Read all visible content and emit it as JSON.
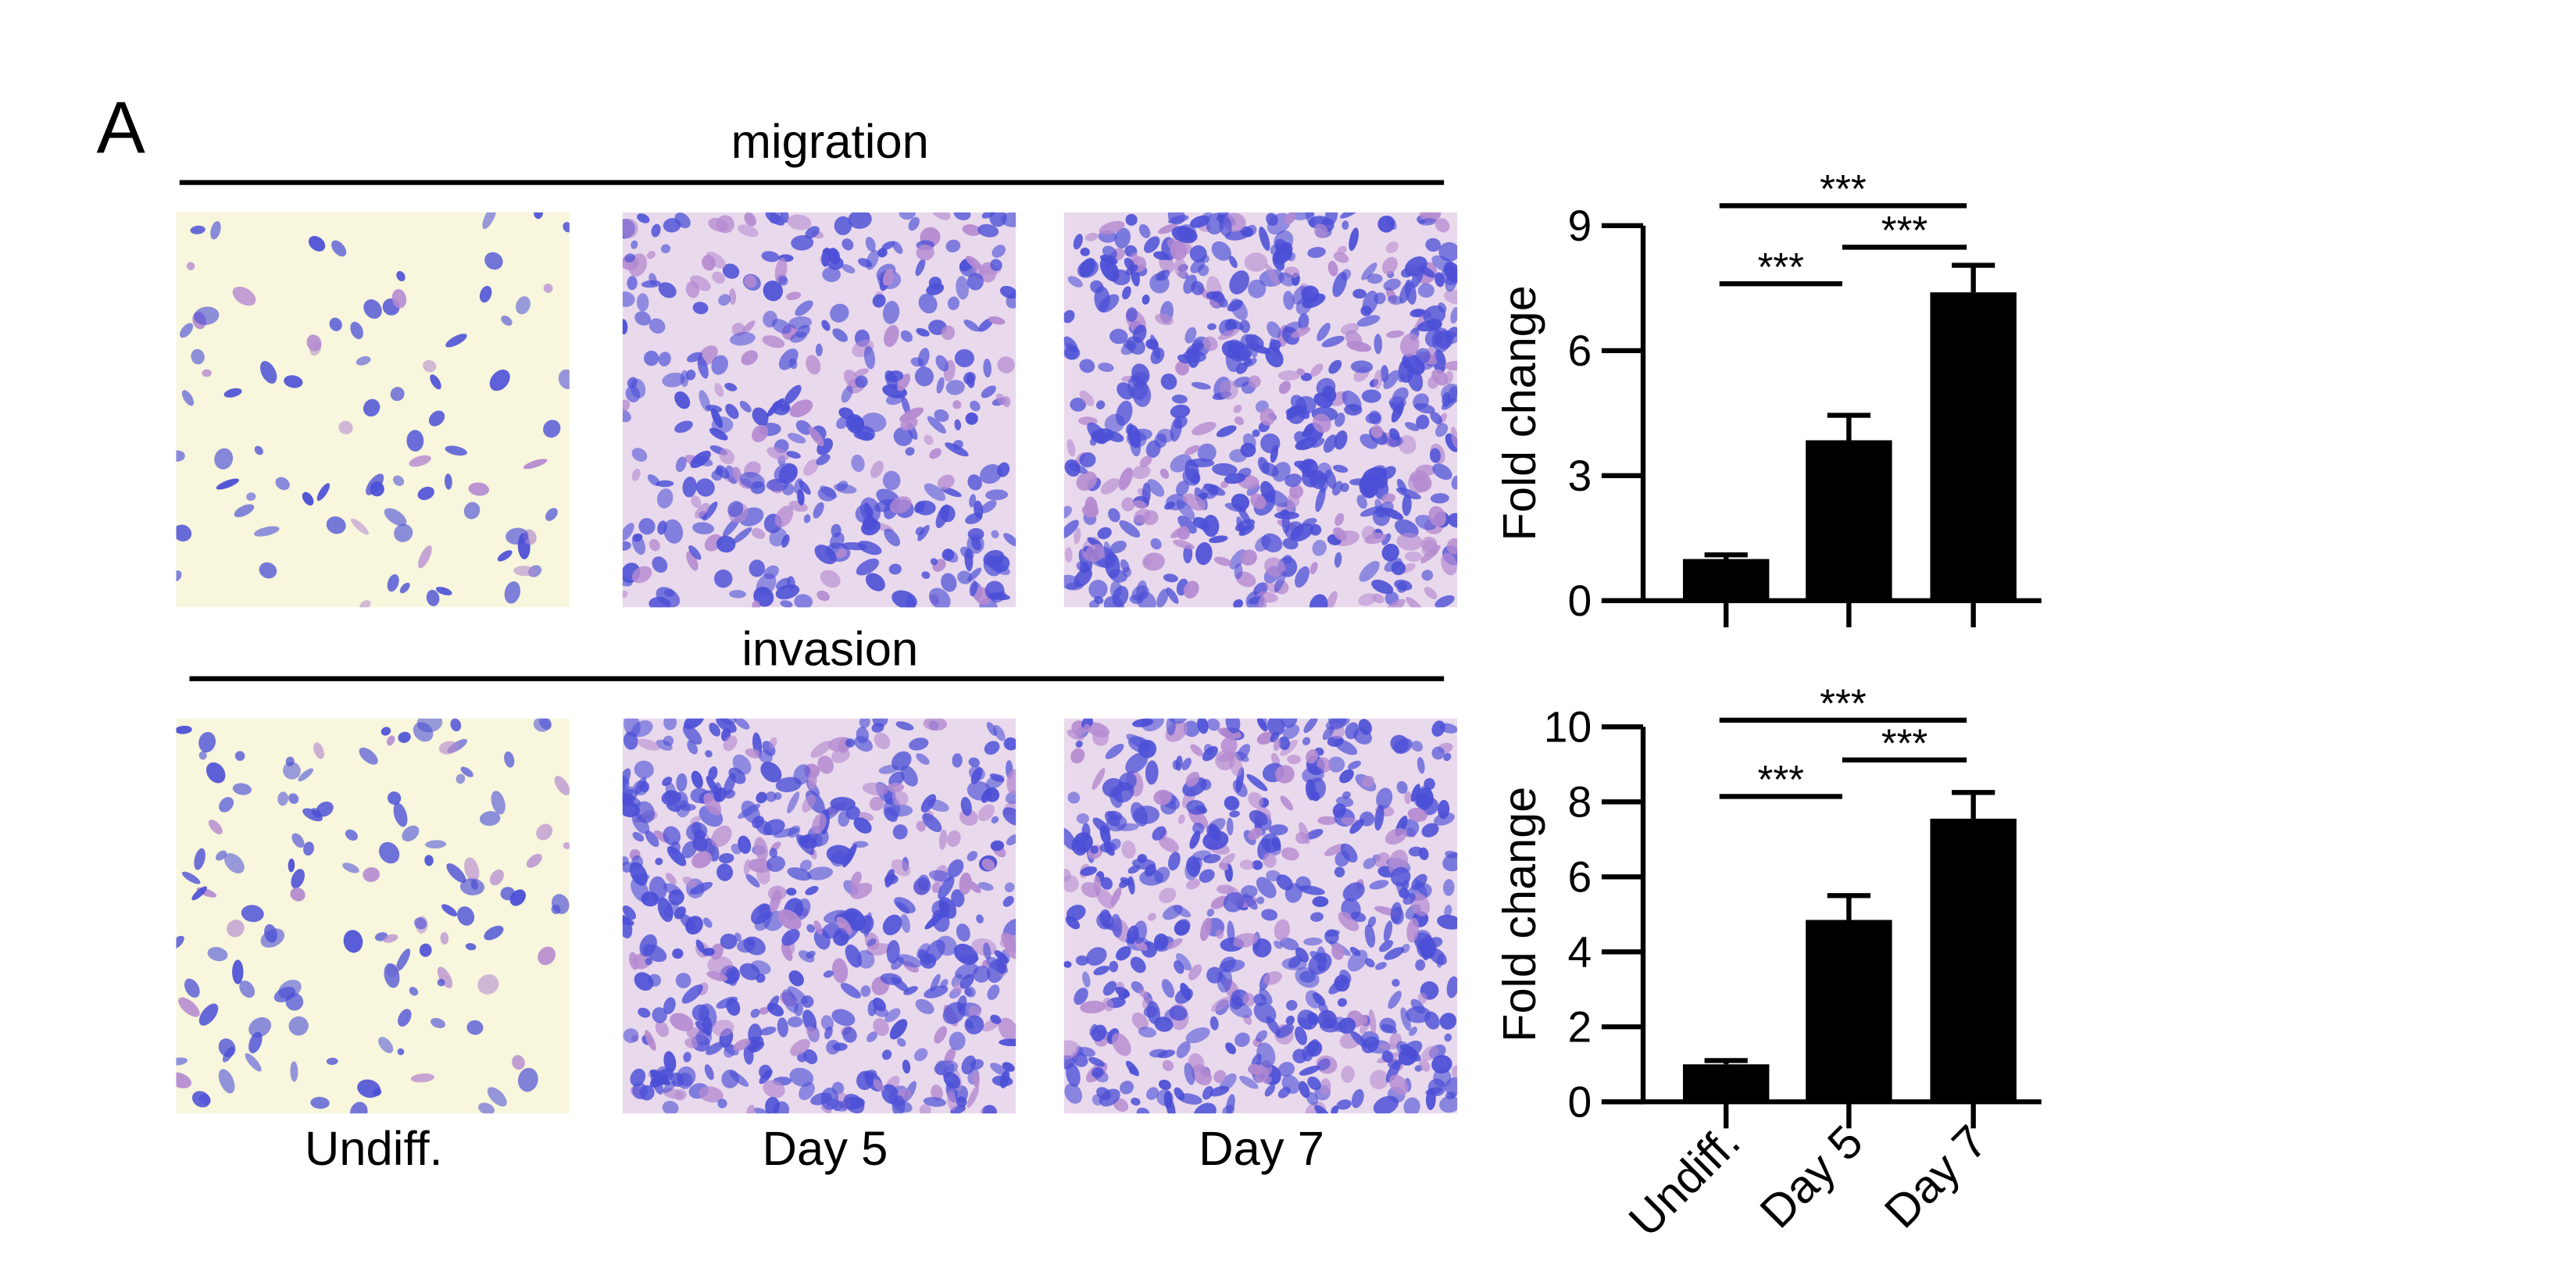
{
  "panel_label": "A",
  "rows": [
    "migration",
    "invasion"
  ],
  "columns": [
    "Undiff.",
    "Day 5",
    "Day 7"
  ],
  "chart_data": [
    {
      "type": "bar",
      "ylabel": "Fold change",
      "categories": [
        null,
        null,
        null
      ],
      "values": [
        1.0,
        3.85,
        7.4
      ],
      "errors": [
        0.1,
        0.6,
        0.65
      ],
      "color": "#000000",
      "ylim": [
        0,
        9
      ],
      "yticks": [
        0,
        3,
        6,
        9
      ],
      "comparisons": [
        {
          "pair": [
            0,
            1
          ],
          "label": "***"
        },
        {
          "pair": [
            1,
            2
          ],
          "label": "***"
        },
        {
          "pair": [
            0,
            2
          ],
          "label": "***"
        }
      ]
    },
    {
      "type": "bar",
      "ylabel": "Fold change",
      "categories": [
        "Undiff.",
        "Day 5",
        "Day 7"
      ],
      "values": [
        1.0,
        4.85,
        7.55
      ],
      "errors": [
        0.1,
        0.65,
        0.7
      ],
      "color": "#000000",
      "ylim": [
        0,
        10
      ],
      "yticks": [
        0,
        2,
        4,
        6,
        8,
        10
      ],
      "comparisons": [
        {
          "pair": [
            0,
            1
          ],
          "label": "***"
        },
        {
          "pair": [
            1,
            2
          ],
          "label": "***"
        },
        {
          "pair": [
            0,
            2
          ],
          "label": "***"
        }
      ]
    }
  ]
}
